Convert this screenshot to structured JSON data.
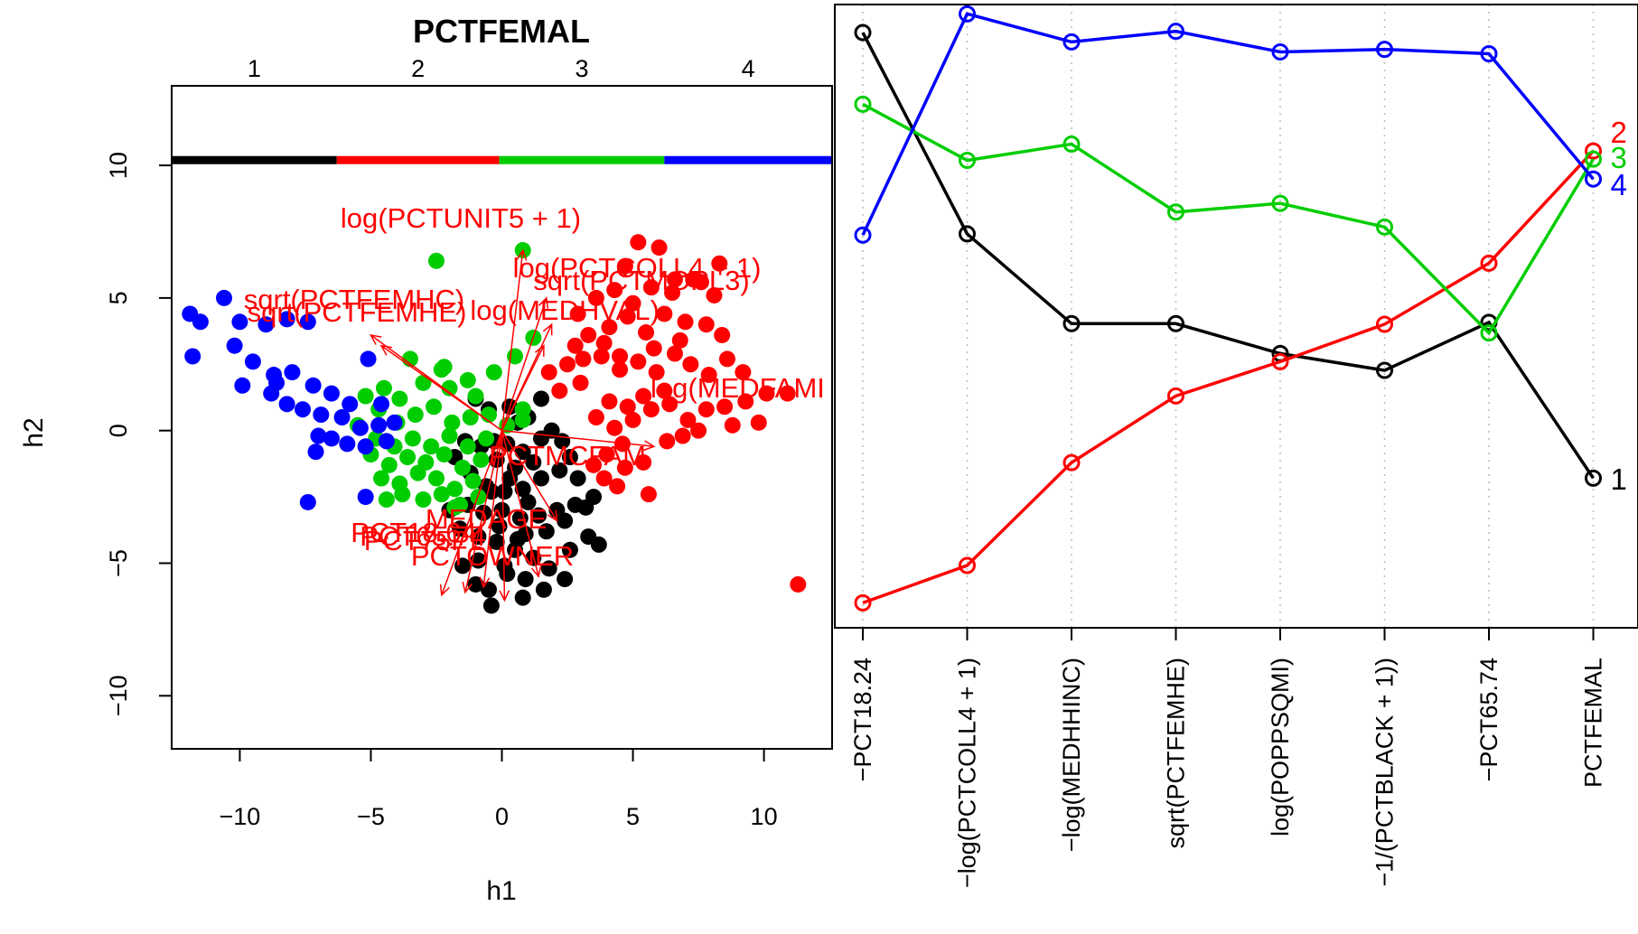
{
  "chart_data": [
    {
      "type": "scatter",
      "title": "PCTFEMAL",
      "xlabel": "h1",
      "ylabel": "h2",
      "xlim": [
        -12.6,
        12.6
      ],
      "ylim": [
        -12,
        13
      ],
      "xticks": [
        "-10",
        "-5",
        "0",
        "5",
        "10"
      ],
      "yticks": [
        "-10",
        "-5",
        "0",
        "5",
        "10"
      ],
      "top_axis_ticks": [
        "1",
        "2",
        "3",
        "4"
      ],
      "group_bar": {
        "y": 10.2,
        "segments": [
          {
            "group": "1",
            "from": -12.6,
            "to": -6.3,
            "color": "#000000"
          },
          {
            "group": "2",
            "from": -6.3,
            "to": -0.1,
            "color": "#ff0000"
          },
          {
            "group": "3",
            "from": -0.1,
            "to": 6.2,
            "color": "#00cd00"
          },
          {
            "group": "4",
            "from": 6.2,
            "to": 12.6,
            "color": "#0000ff"
          }
        ]
      },
      "series": [
        {
          "group": "1",
          "color": "#000000",
          "points": [
            [
              -1,
              1.2
            ],
            [
              -0.5,
              0.8
            ],
            [
              0.3,
              0.9
            ],
            [
              0.6,
              0.3
            ],
            [
              1,
              0.5
            ],
            [
              0.2,
              -0.5
            ],
            [
              -0.3,
              -0.4
            ],
            [
              0.8,
              -0.8
            ],
            [
              1.5,
              -0.3
            ],
            [
              1.9,
              0
            ],
            [
              2.3,
              -0.4
            ],
            [
              1.2,
              -1.2
            ],
            [
              0.5,
              -1.4
            ],
            [
              -0.2,
              -1.1
            ],
            [
              -0.8,
              -0.6
            ],
            [
              -1.4,
              -0.4
            ],
            [
              -1.8,
              -1
            ],
            [
              -1.2,
              -1.6
            ],
            [
              -0.6,
              -2.1
            ],
            [
              0.1,
              -2.3
            ],
            [
              0.8,
              -2.2
            ],
            [
              1.5,
              -1.8
            ],
            [
              2.2,
              -1.5
            ],
            [
              2.9,
              -1.8
            ],
            [
              3.5,
              -2.5
            ],
            [
              2.8,
              -2.8
            ],
            [
              2.1,
              -3
            ],
            [
              1.4,
              -3.2
            ],
            [
              0.7,
              -3.3
            ],
            [
              0,
              -3
            ],
            [
              -0.7,
              -3.1
            ],
            [
              -1.3,
              -2.8
            ],
            [
              -2,
              -3
            ],
            [
              -1.6,
              -3.7
            ],
            [
              -0.9,
              -4
            ],
            [
              -0.2,
              -4.2
            ],
            [
              0.5,
              -4.5
            ],
            [
              1.2,
              -4.8
            ],
            [
              1.8,
              -5.2
            ],
            [
              2.6,
              -4.5
            ],
            [
              3.3,
              -4
            ],
            [
              3.7,
              -4.3
            ],
            [
              0.2,
              -5.4
            ],
            [
              -0.5,
              -6
            ],
            [
              -1,
              -5.8
            ],
            [
              0.8,
              -6.3
            ],
            [
              -0.4,
              -6.6
            ],
            [
              0.3,
              -1.8
            ],
            [
              1,
              -2.7
            ],
            [
              -0.4,
              -2.3
            ],
            [
              1.7,
              -3.8
            ],
            [
              0.9,
              -3.9
            ],
            [
              2.4,
              -3.4
            ],
            [
              -1.5,
              -5.1
            ],
            [
              0.1,
              -5.1
            ],
            [
              0.9,
              -5.6
            ],
            [
              1.6,
              -6
            ],
            [
              -0.9,
              -4.9
            ],
            [
              2.4,
              -5.6
            ],
            [
              1.5,
              1.2
            ],
            [
              0.6,
              -4.1
            ],
            [
              -0.1,
              -3.6
            ],
            [
              3.2,
              -2.9
            ],
            [
              2.6,
              -1
            ]
          ]
        },
        {
          "group": "2",
          "color": "#ff0000",
          "points": [
            [
              1.8,
              2.2
            ],
            [
              2.5,
              2.5
            ],
            [
              3.1,
              2.7
            ],
            [
              3.8,
              2.8
            ],
            [
              4.5,
              2.3
            ],
            [
              5.2,
              2.6
            ],
            [
              5.9,
              2.2
            ],
            [
              6.6,
              2.9
            ],
            [
              7.2,
              2.5
            ],
            [
              7.9,
              2.1
            ],
            [
              8.6,
              2.7
            ],
            [
              9.2,
              2.2
            ],
            [
              6.2,
              1.5
            ],
            [
              5.4,
              1.3
            ],
            [
              4.8,
              0.9
            ],
            [
              4.1,
              1.1
            ],
            [
              3.6,
              0.5
            ],
            [
              4.3,
              0.1
            ],
            [
              5.0,
              0.4
            ],
            [
              5.7,
              0.8
            ],
            [
              6.4,
              1
            ],
            [
              7.1,
              0.4
            ],
            [
              7.8,
              0.8
            ],
            [
              8.5,
              0.9
            ],
            [
              9.3,
              1.1
            ],
            [
              10.1,
              1.4
            ],
            [
              10.9,
              1.4
            ],
            [
              4.6,
              -0.5
            ],
            [
              4.0,
              -0.9
            ],
            [
              4.7,
              -1.4
            ],
            [
              5.4,
              -1.2
            ],
            [
              3.9,
              -1.8
            ],
            [
              5.6,
              -2.4
            ],
            [
              4.4,
              -2.1
            ],
            [
              3.5,
              -1.3
            ],
            [
              6.3,
              -0.4
            ],
            [
              7.5,
              0
            ],
            [
              8.8,
              0.2
            ],
            [
              6.9,
              -0.2
            ],
            [
              9.8,
              0.3
            ],
            [
              3.3,
              3.6
            ],
            [
              4.1,
              3.9
            ],
            [
              4.8,
              4.3
            ],
            [
              5.5,
              3.7
            ],
            [
              6.2,
              4.4
            ],
            [
              7.0,
              4.1
            ],
            [
              7.8,
              4.0
            ],
            [
              8.4,
              3.6
            ],
            [
              2.9,
              4.4
            ],
            [
              3.6,
              5.0
            ],
            [
              4.3,
              5.3
            ],
            [
              5.0,
              4.8
            ],
            [
              5.7,
              5.4
            ],
            [
              6.5,
              5.2
            ],
            [
              7.3,
              5.7
            ],
            [
              8.1,
              5.1
            ],
            [
              5.2,
              7.1
            ],
            [
              6.0,
              6.9
            ],
            [
              6.6,
              5.7
            ],
            [
              8.3,
              6.3
            ],
            [
              7.6,
              5.6
            ],
            [
              4.7,
              6.2
            ],
            [
              11.3,
              -5.8
            ],
            [
              4.5,
              2.8
            ],
            [
              2.2,
              1.5
            ],
            [
              3.0,
              1.8
            ],
            [
              5.8,
              3.1
            ],
            [
              3.9,
              3.3
            ],
            [
              6.8,
              3.4
            ],
            [
              2.8,
              3.2
            ]
          ]
        },
        {
          "group": "3",
          "color": "#00cd00",
          "points": [
            [
              -2.5,
              6.4
            ],
            [
              0.8,
              6.8
            ],
            [
              1.2,
              3.5
            ],
            [
              0.5,
              2.8
            ],
            [
              -0.3,
              2.2
            ],
            [
              -1.3,
              1.9
            ],
            [
              -2.3,
              2.3
            ],
            [
              -3.5,
              2.7
            ],
            [
              -2.2,
              2.4
            ],
            [
              -3.9,
              1.2
            ],
            [
              -4.5,
              1.6
            ],
            [
              -5.2,
              1.3
            ],
            [
              -4.7,
              0.8
            ],
            [
              -4.0,
              0.3
            ],
            [
              -3.3,
              0.6
            ],
            [
              -2.6,
              0.9
            ],
            [
              -1.9,
              0.3
            ],
            [
              -1.2,
              0.5
            ],
            [
              -0.5,
              0.6
            ],
            [
              0.2,
              0.2
            ],
            [
              0.8,
              0.4
            ],
            [
              -5.5,
              0.2
            ],
            [
              -4.8,
              -0.3
            ],
            [
              -4.1,
              -0.6
            ],
            [
              -3.4,
              -0.3
            ],
            [
              -2.7,
              -0.6
            ],
            [
              -2.0,
              -0.2
            ],
            [
              -1.3,
              -0.6
            ],
            [
              -0.6,
              -0.3
            ],
            [
              -5.0,
              -0.9
            ],
            [
              -4.3,
              -1.3
            ],
            [
              -3.6,
              -1.0
            ],
            [
              -2.9,
              -1.2
            ],
            [
              -2.2,
              -0.9
            ],
            [
              -1.5,
              -1.4
            ],
            [
              -0.8,
              -1.1
            ],
            [
              -4.6,
              -1.8
            ],
            [
              -3.9,
              -2.0
            ],
            [
              -3.2,
              -1.6
            ],
            [
              -2.5,
              -1.8
            ],
            [
              -1.8,
              -2.2
            ],
            [
              -1.1,
              -1.9
            ],
            [
              -3.0,
              -2.6
            ],
            [
              -2.3,
              -2.4
            ],
            [
              -1.6,
              -2.8
            ],
            [
              -3.8,
              -2.4
            ],
            [
              -0.9,
              -2.5
            ],
            [
              0.8,
              0.8
            ],
            [
              -2.0,
              1.6
            ],
            [
              -1.0,
              1.3
            ],
            [
              -3.0,
              1.8
            ],
            [
              -4.4,
              -2.6
            ],
            [
              -1.8,
              -2.9
            ]
          ]
        },
        {
          "group": "4",
          "color": "#0000ff",
          "points": [
            [
              -11.9,
              4.4
            ],
            [
              -10.6,
              5.0
            ],
            [
              -11.5,
              4.1
            ],
            [
              -10.0,
              4.1
            ],
            [
              -9.0,
              4.0
            ],
            [
              -8.2,
              4.2
            ],
            [
              -7.4,
              4.1
            ],
            [
              -11.8,
              2.8
            ],
            [
              -10.2,
              3.2
            ],
            [
              -9.5,
              2.6
            ],
            [
              -8.7,
              2.1
            ],
            [
              -8.0,
              2.2
            ],
            [
              -7.2,
              1.7
            ],
            [
              -6.5,
              1.4
            ],
            [
              -5.8,
              1.0
            ],
            [
              -5.1,
              2.7
            ],
            [
              -4.6,
              1.0
            ],
            [
              -8.8,
              1.4
            ],
            [
              -8.2,
              1.0
            ],
            [
              -7.6,
              0.8
            ],
            [
              -6.9,
              0.6
            ],
            [
              -6.1,
              0.5
            ],
            [
              -5.4,
              0.1
            ],
            [
              -4.7,
              0.2
            ],
            [
              -4.1,
              0.3
            ],
            [
              -9.9,
              1.7
            ],
            [
              -8.6,
              1.8
            ],
            [
              -6.5,
              -0.3
            ],
            [
              -5.9,
              -0.5
            ],
            [
              -5.2,
              -0.6
            ],
            [
              -4.4,
              -0.4
            ],
            [
              -7.0,
              -0.2
            ],
            [
              -7.4,
              -2.7
            ],
            [
              -5.2,
              -2.5
            ],
            [
              -7.1,
              -0.8
            ]
          ]
        }
      ],
      "arrows": {
        "color": "#ff0000",
        "origin": [
          0,
          0
        ],
        "labels": [
          "log(PCTUNIT5 + 1)",
          "log(PCTCOLL4 + 1)",
          "sqrt(PCTMOPL3)",
          "log(MEDHVAL)",
          "sqrt(PCTFEMHC)",
          "sqrt(PCTFEMHE)",
          "log(MEDFAMI",
          "PCTMCFAM",
          "MEDAGE",
          "PCT18.64",
          "PCT65.74",
          "PCT75PL",
          "PCTOWNER"
        ]
      }
    },
    {
      "type": "line",
      "categories": [
        "−PCT18.24",
        "−log(PCTCOLL4 + 1)",
        "−log(MEDHHINC)",
        "sqrt(PCTFEMHE)",
        "log(POPPSQMI)",
        "−1/(PCTBLACK + 1))",
        "−PCT65.74",
        "PCTFEMAL"
      ],
      "ylim": [
        0,
        1
      ],
      "series": [
        {
          "name": "1",
          "color": "#000000",
          "values": [
            0.955,
            0.632,
            0.488,
            0.488,
            0.44,
            0.413,
            0.49,
            0.24
          ]
        },
        {
          "name": "2",
          "color": "#ff0000",
          "values": [
            0.04,
            0.1,
            0.265,
            0.372,
            0.427,
            0.487,
            0.585,
            0.765
          ]
        },
        {
          "name": "3",
          "color": "#00cd00",
          "values": [
            0.84,
            0.75,
            0.776,
            0.667,
            0.681,
            0.643,
            0.473,
            0.752
          ]
        },
        {
          "name": "4",
          "color": "#0000ff",
          "values": [
            0.63,
            0.985,
            0.94,
            0.957,
            0.924,
            0.928,
            0.921,
            0.72
          ]
        }
      ],
      "end_labels": [
        "1",
        "2",
        "3",
        "4"
      ]
    }
  ]
}
